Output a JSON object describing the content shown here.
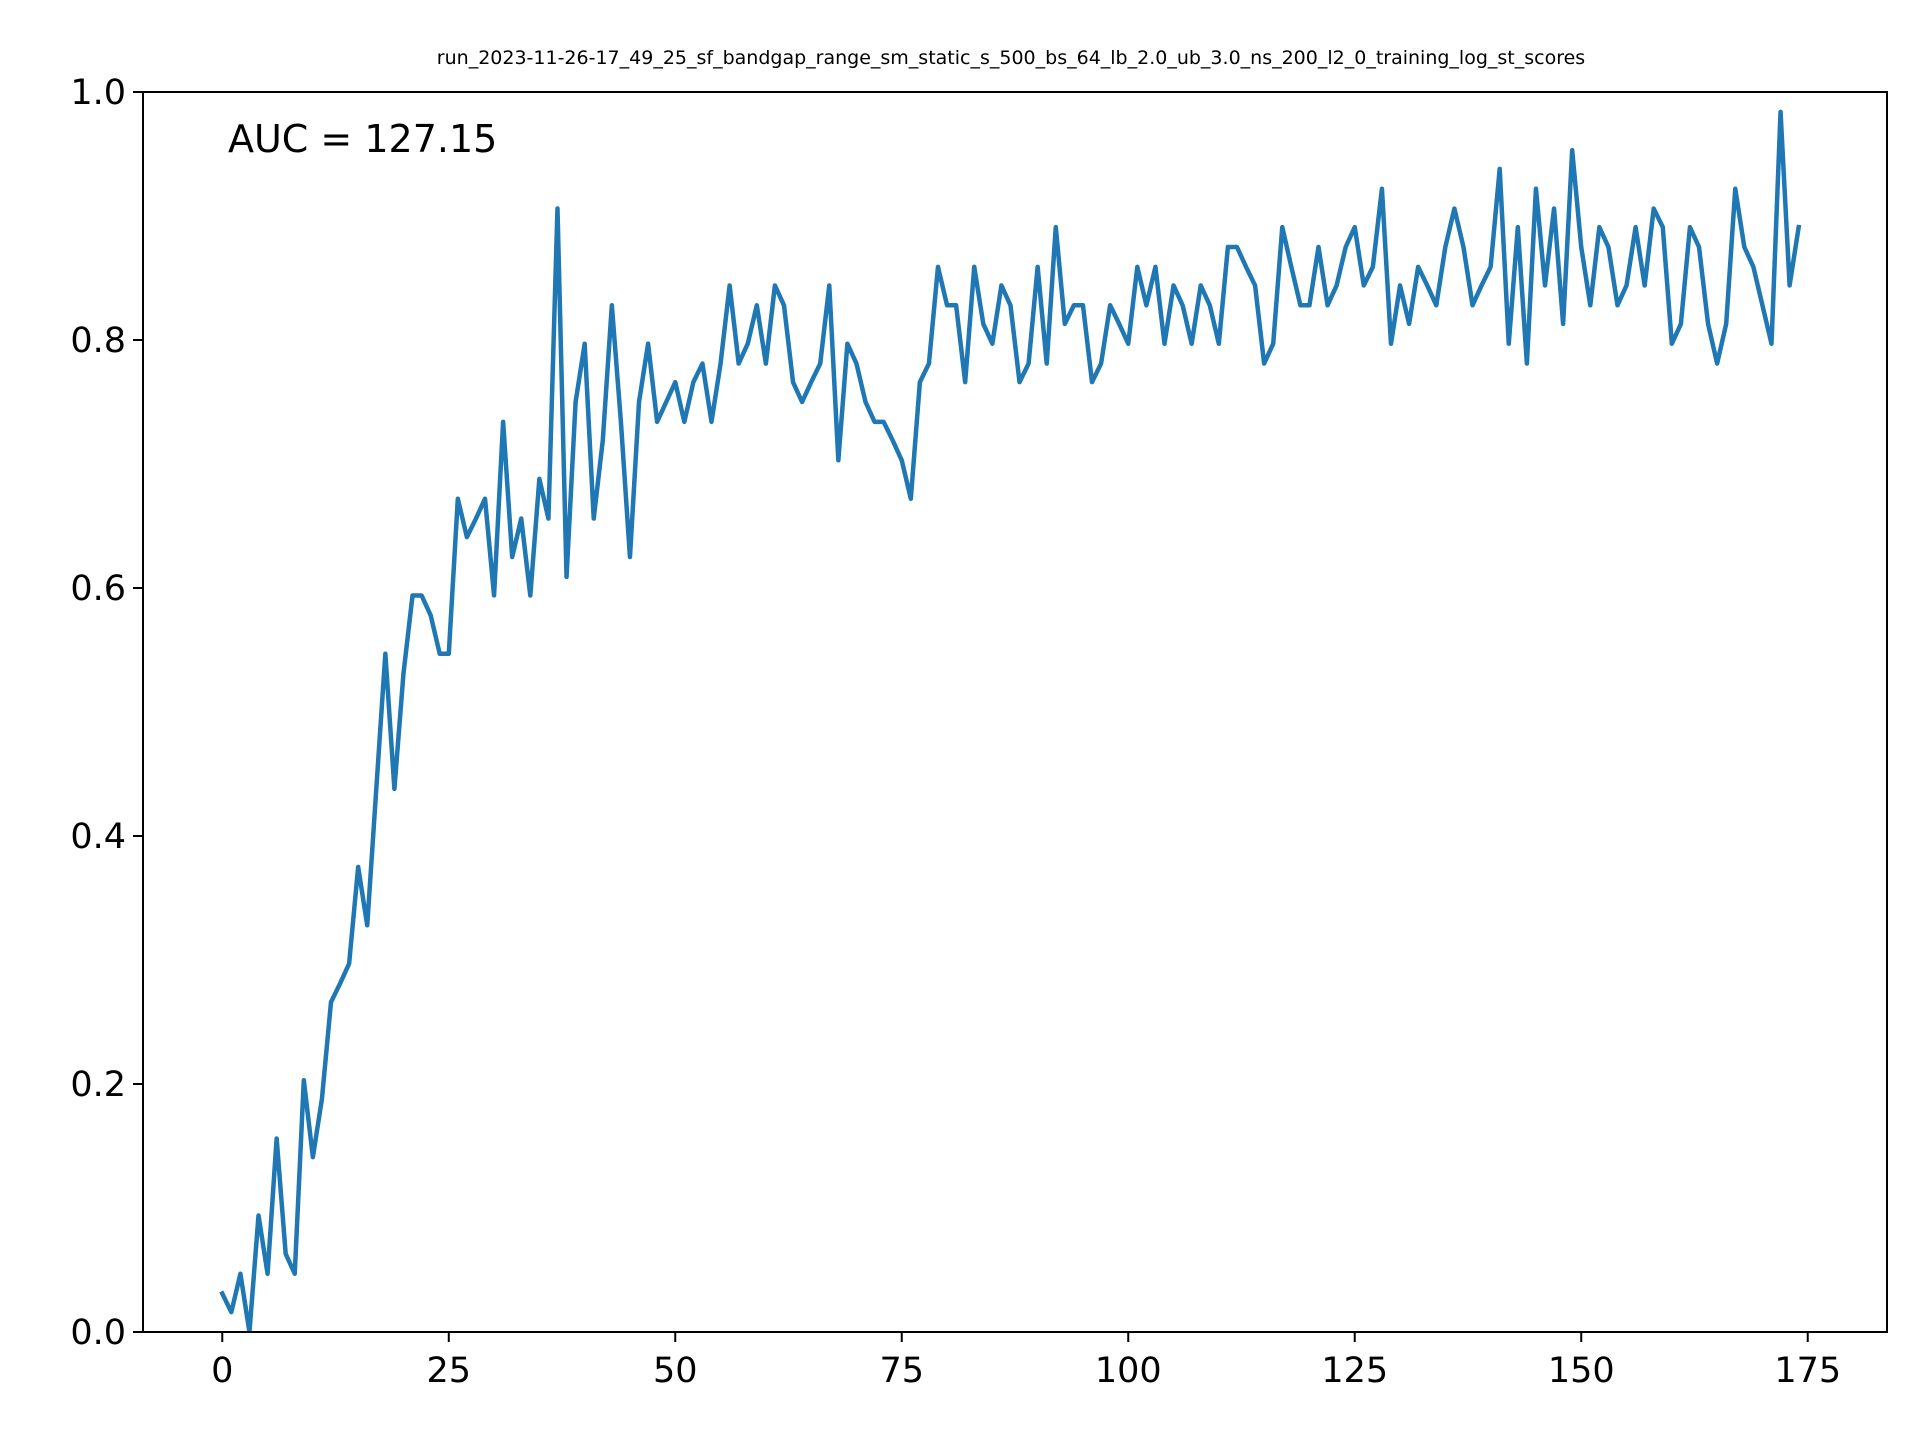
{
  "chart_data": {
    "type": "line",
    "title": "run_2023-11-26-17_49_25_sf_bandgap_range_sm_static_s_500_bs_64_lb_2.0_ub_3.0_ns_200_l2_0_training_log_st_scores",
    "annotation": "AUC = 127.15",
    "xlabel": "",
    "ylabel": "",
    "xlim": [
      -8.75,
      183.75
    ],
    "ylim": [
      0.0,
      1.0
    ],
    "grid": false,
    "x_ticks": [
      0,
      25,
      50,
      75,
      100,
      125,
      150,
      175
    ],
    "y_ticks": [
      "0.0",
      "0.2",
      "0.4",
      "0.6",
      "0.8",
      "1.0"
    ],
    "line_color": "#1f77b4",
    "series": [
      {
        "x_start": 0,
        "values": [
          0.031,
          0.016,
          0.047,
          0.0,
          0.094,
          0.047,
          0.156,
          0.063,
          0.047,
          0.203,
          0.141,
          0.188,
          0.266,
          0.281,
          0.297,
          0.375,
          0.328,
          0.438,
          0.547,
          0.438,
          0.531,
          0.594,
          0.594,
          0.578,
          0.547,
          0.547,
          0.672,
          0.641,
          0.656,
          0.672,
          0.594,
          0.734,
          0.625,
          0.656,
          0.594,
          0.688,
          0.656,
          0.906,
          0.609,
          0.75,
          0.797,
          0.656,
          0.719,
          0.828,
          0.734,
          0.625,
          0.75,
          0.797,
          0.734,
          0.75,
          0.766,
          0.734,
          0.766,
          0.781,
          0.734,
          0.781,
          0.844,
          0.781,
          0.797,
          0.828,
          0.781,
          0.844,
          0.828,
          0.766,
          0.75,
          0.766,
          0.781,
          0.844,
          0.703,
          0.797,
          0.781,
          0.75,
          0.734,
          0.734,
          0.719,
          0.703,
          0.672,
          0.766,
          0.781,
          0.859,
          0.828,
          0.828,
          0.766,
          0.859,
          0.813,
          0.797,
          0.844,
          0.828,
          0.766,
          0.781,
          0.859,
          0.781,
          0.891,
          0.813,
          0.828,
          0.828,
          0.766,
          0.781,
          0.828,
          0.813,
          0.797,
          0.859,
          0.828,
          0.859,
          0.797,
          0.844,
          0.828,
          0.797,
          0.844,
          0.828,
          0.797,
          0.875,
          0.875,
          0.859,
          0.844,
          0.781,
          0.797,
          0.891,
          0.859,
          0.828,
          0.828,
          0.875,
          0.828,
          0.844,
          0.875,
          0.891,
          0.844,
          0.859,
          0.922,
          0.797,
          0.844,
          0.813,
          0.859,
          0.844,
          0.828,
          0.875,
          0.906,
          0.875,
          0.828,
          0.844,
          0.859,
          0.938,
          0.797,
          0.891,
          0.781,
          0.922,
          0.844,
          0.906,
          0.813,
          0.953,
          0.875,
          0.828,
          0.891,
          0.875,
          0.828,
          0.844,
          0.891,
          0.844,
          0.906,
          0.891,
          0.797,
          0.813,
          0.891,
          0.875,
          0.813,
          0.781,
          0.813,
          0.922,
          0.875,
          0.859,
          0.828,
          0.797,
          0.984,
          0.844,
          0.891
        ]
      }
    ]
  }
}
